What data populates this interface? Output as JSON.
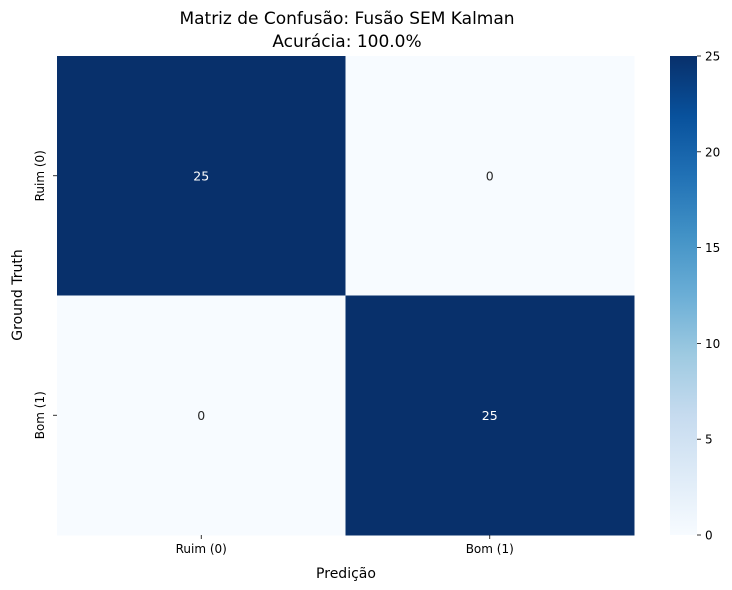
{
  "chart_data": {
    "type": "heatmap",
    "title": "Matriz de Confusão: Fusão SEM Kalman",
    "subtitle": "Acurácia: 100.0%",
    "xlabel": "Predição",
    "ylabel": "Ground Truth",
    "x_categories": [
      "Ruim (0)",
      "Bom (1)"
    ],
    "y_categories": [
      "Ruim (0)",
      "Bom (1)"
    ],
    "values": [
      [
        25,
        0
      ],
      [
        0,
        25
      ]
    ],
    "value_labels": [
      [
        "25",
        "0"
      ],
      [
        "0",
        "25"
      ]
    ],
    "colorbar": {
      "range": [
        0,
        25
      ],
      "ticks": [
        "0",
        "5",
        "10",
        "15",
        "20",
        "25"
      ],
      "colormap": "Blues",
      "colors": [
        "#f7fbff",
        "#deebf7",
        "#c6dbef",
        "#9ecae1",
        "#6baed6",
        "#4292c6",
        "#2171b5",
        "#08519c",
        "#08306b"
      ]
    },
    "annotation_colors": {
      "dark_cell": "#ffffff",
      "light_cell": "#262626"
    }
  }
}
